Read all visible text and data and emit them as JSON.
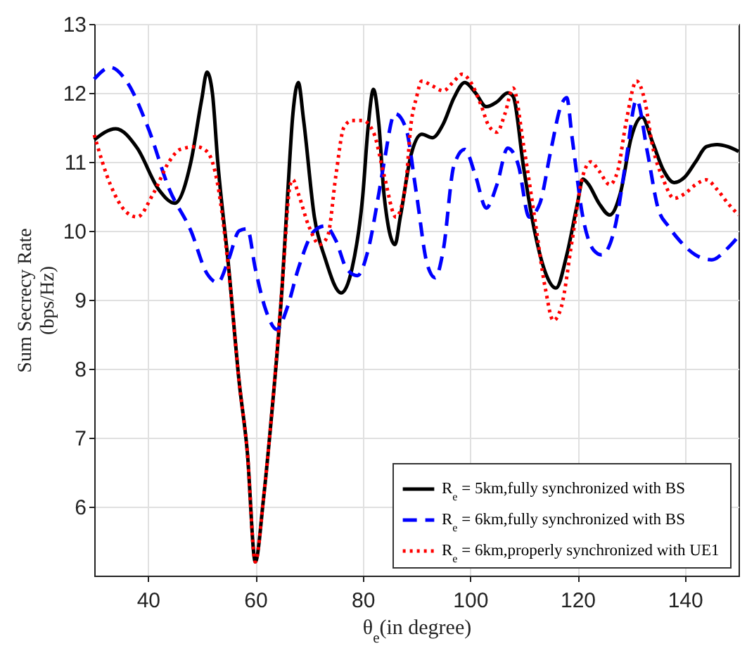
{
  "chart_data": {
    "type": "line",
    "xlabel": "θ$_{e}$(in degree)",
    "ylabel": "Sum Secrecy Rate\n(bps/Hz)",
    "xlim": [
      30,
      150
    ],
    "ylim": [
      5,
      13
    ],
    "xticks": [
      40,
      60,
      80,
      100,
      120,
      140
    ],
    "yticks": [
      6,
      7,
      8,
      9,
      10,
      11,
      12,
      13
    ],
    "grid": true,
    "legend": "bottom right",
    "marker": "none",
    "series": [
      {
        "name": "R$_{e}$ = 5km,fully synchronized with BS",
        "color": "#000000",
        "line_style": "solid",
        "x": [
          30,
          34,
          38,
          42,
          45,
          48,
          50,
          51,
          52,
          53,
          55,
          57,
          58.5,
          60,
          61.5,
          63,
          65,
          66,
          67,
          68,
          69,
          71,
          73,
          76,
          78,
          80,
          81,
          82,
          83,
          84,
          86,
          87,
          89,
          91,
          93,
          95,
          97,
          99,
          101,
          103,
          105,
          107,
          108,
          110,
          112,
          114,
          116,
          118,
          120,
          121,
          122,
          124,
          126,
          128,
          130,
          132,
          134,
          136,
          138,
          140,
          142,
          144,
          146,
          148,
          150
        ],
        "values": [
          11.32,
          11.48,
          11.2,
          10.6,
          10.4,
          11.0,
          11.9,
          12.3,
          12.0,
          11.0,
          9.5,
          7.8,
          6.8,
          5.2,
          6.1,
          7.3,
          9.2,
          10.5,
          11.7,
          12.15,
          11.6,
          10.2,
          9.6,
          9.1,
          9.45,
          10.5,
          11.5,
          12.05,
          11.55,
          10.5,
          9.8,
          10.2,
          11.1,
          11.4,
          11.35,
          11.55,
          11.93,
          12.15,
          12.0,
          11.8,
          11.87,
          12.0,
          11.95,
          10.9,
          10.0,
          9.4,
          9.17,
          9.65,
          10.4,
          10.75,
          10.68,
          10.4,
          10.23,
          10.55,
          11.35,
          11.65,
          11.28,
          10.88,
          10.7,
          10.78,
          11.0,
          11.22,
          11.25,
          11.22,
          11.15
        ]
      },
      {
        "name": "R$_{e}$ = 6km,fully synchronized with BS",
        "color": "#0000ff",
        "line_style": "dashed",
        "x": [
          30,
          33,
          36,
          40,
          44,
          48,
          51,
          53,
          55,
          57,
          58.5,
          60,
          62,
          64,
          66,
          68,
          71,
          73,
          75,
          77,
          79,
          81,
          83,
          84,
          86,
          88,
          90,
          92,
          93.5,
          95,
          97,
          99,
          101,
          103,
          105,
          107,
          109,
          111,
          113,
          115,
          117,
          118,
          119,
          121,
          123,
          124.5,
          127,
          129,
          131,
          133,
          135,
          137,
          139,
          142,
          145,
          148,
          150
        ],
        "values": [
          12.2,
          12.37,
          12.17,
          11.5,
          10.6,
          10.0,
          9.38,
          9.25,
          9.58,
          10.0,
          10.03,
          9.45,
          8.84,
          8.57,
          8.9,
          9.45,
          10.0,
          10.07,
          9.86,
          9.45,
          9.35,
          9.72,
          10.54,
          11.0,
          11.7,
          11.5,
          10.54,
          9.52,
          9.32,
          9.72,
          10.95,
          11.18,
          10.8,
          10.33,
          10.67,
          11.2,
          10.95,
          10.2,
          10.4,
          11.15,
          11.83,
          11.93,
          11.35,
          10.2,
          9.72,
          9.65,
          10.06,
          11.0,
          11.9,
          11.15,
          10.33,
          10.06,
          9.86,
          9.65,
          9.58,
          9.75,
          9.92
        ]
      },
      {
        "name": "R$_{e}$ = 6km,properly synchronized with UE1",
        "color": "#ff0000",
        "line_style": "dotted",
        "x": [
          30,
          33,
          36,
          38,
          41,
          44,
          46,
          49,
          51,
          53,
          55,
          57,
          58.5,
          60,
          61.5,
          63,
          65,
          66.5,
          67,
          68,
          70,
          72,
          73.5,
          75,
          76.5,
          78,
          80,
          82,
          84,
          86.2,
          88,
          89,
          90,
          91,
          93,
          95,
          97,
          98.5,
          100,
          102,
          103.5,
          105,
          106.5,
          108,
          110,
          112,
          114,
          115.5,
          117,
          119,
          121,
          122.5,
          124,
          126,
          127.5,
          129,
          131,
          132.5,
          134,
          136,
          138,
          140,
          142,
          144,
          146,
          148,
          150
        ],
        "values": [
          11.39,
          10.67,
          10.27,
          10.2,
          10.54,
          11.01,
          11.18,
          11.22,
          11.15,
          10.67,
          9.45,
          7.8,
          6.8,
          5.2,
          6.1,
          7.3,
          9.2,
          10.67,
          10.74,
          10.54,
          10.06,
          9.8,
          9.93,
          10.8,
          11.5,
          11.6,
          11.6,
          11.43,
          10.8,
          10.2,
          10.67,
          11.55,
          11.93,
          12.17,
          12.1,
          12.03,
          12.17,
          12.27,
          12.17,
          11.83,
          11.52,
          11.43,
          11.7,
          12.07,
          11.22,
          10.2,
          9.17,
          8.7,
          8.9,
          9.86,
          10.8,
          11.0,
          10.87,
          10.67,
          10.87,
          11.55,
          12.17,
          11.9,
          11.22,
          10.74,
          10.47,
          10.54,
          10.67,
          10.74,
          10.6,
          10.4,
          10.23
        ]
      }
    ]
  }
}
